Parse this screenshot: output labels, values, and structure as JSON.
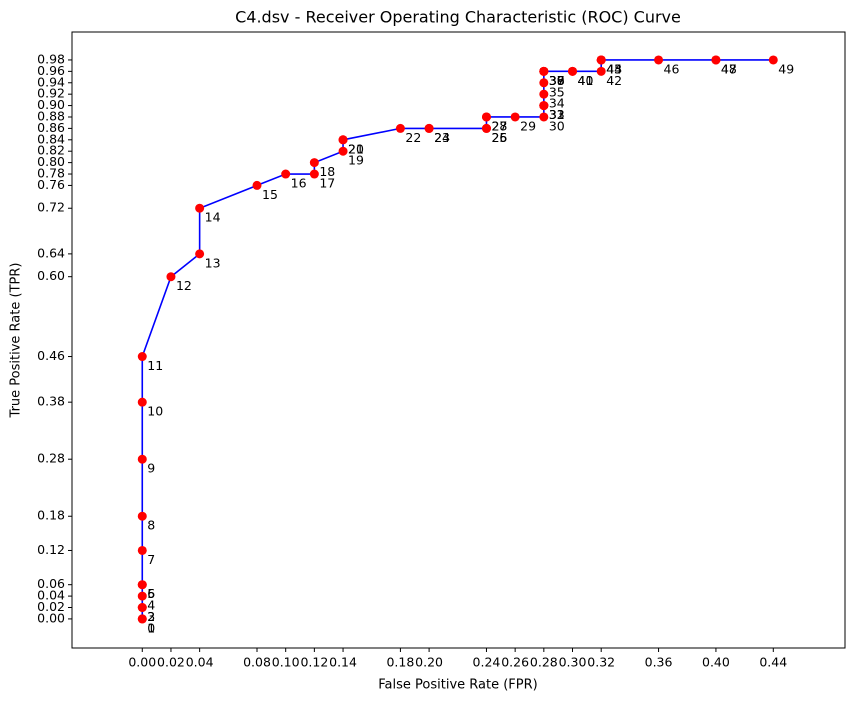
{
  "chart_data": {
    "type": "line",
    "title": "C4.dsv - Receiver Operating Characteristic (ROC) Curve",
    "x_label": "False Positive Rate (FPR)",
    "y_label": "True Positive Rate (TPR)",
    "line_color": "#0000ff",
    "marker_color": "#ff0000",
    "grid": false,
    "x": [
      0,
      0,
      0,
      0,
      0,
      0,
      0,
      0,
      0,
      0,
      0,
      0,
      0.02,
      0.04,
      0.04,
      0.08,
      0.1,
      0.12,
      0.12,
      0.14,
      0.14,
      0.14,
      0.18,
      0.2,
      0.2,
      0.24,
      0.24,
      0.24,
      0.24,
      0.26,
      0.28,
      0.28,
      0.28,
      0.28,
      0.28,
      0.28,
      0.28,
      0.28,
      0.28,
      0.28,
      0.3,
      0.3,
      0.32,
      0.32,
      0.32,
      0.32,
      0.36,
      0.4,
      0.4,
      0.44
    ],
    "y": [
      0,
      0,
      0.02,
      0.02,
      0.04,
      0.06,
      0.06,
      0.12,
      0.18,
      0.28,
      0.38,
      0.46,
      0.6,
      0.64,
      0.72,
      0.76,
      0.78,
      0.78,
      0.8,
      0.82,
      0.84,
      0.84,
      0.86,
      0.86,
      0.86,
      0.86,
      0.86,
      0.88,
      0.88,
      0.88,
      0.88,
      0.9,
      0.9,
      0.9,
      0.92,
      0.94,
      0.96,
      0.96,
      0.96,
      0.96,
      0.96,
      0.96,
      0.96,
      0.98,
      0.98,
      0.98,
      0.98,
      0.98,
      0.98,
      0.98
    ],
    "point_labels": [
      "0",
      "1",
      "2",
      "3",
      "4",
      "5",
      "6",
      "7",
      "8",
      "9",
      "10",
      "11",
      "12",
      "13",
      "14",
      "15",
      "16",
      "17",
      "18",
      "19",
      "20",
      "21",
      "22",
      "23",
      "24",
      "25",
      "26",
      "27",
      "28",
      "29",
      "30",
      "31",
      "32",
      "33",
      "34",
      "35",
      "36",
      "37",
      "38",
      "39",
      "40",
      "41",
      "42",
      "43",
      "44",
      "45",
      "46",
      "47",
      "48",
      "49"
    ],
    "xlim": [
      -0.049,
      0.49
    ],
    "ylim": [
      -0.051,
      1.029
    ],
    "xticks": [
      {
        "value": 0,
        "label": "0.00"
      },
      0.02,
      0.04,
      0.08,
      {
        "value": 0.1,
        "label": "0.10"
      },
      0.12,
      0.14,
      0.18,
      {
        "value": 0.2,
        "label": "0.20"
      },
      0.24,
      0.26,
      0.28,
      {
        "value": 0.3,
        "label": "0.30"
      },
      0.32,
      0.36,
      {
        "value": 0.4,
        "label": "0.40"
      },
      0.44
    ],
    "yticks": [
      {
        "value": 0,
        "label": "0.00"
      },
      0.02,
      0.04,
      0.06,
      0.12,
      0.18,
      0.28,
      0.38,
      0.46,
      {
        "value": 0.6,
        "label": "0.60"
      },
      0.64,
      0.72,
      0.76,
      0.78,
      {
        "value": 0.8,
        "label": "0.80"
      },
      0.82,
      0.84,
      0.86,
      0.88,
      {
        "value": 0.9,
        "label": "0.90"
      },
      0.92,
      0.94,
      0.96,
      0.98
    ]
  }
}
